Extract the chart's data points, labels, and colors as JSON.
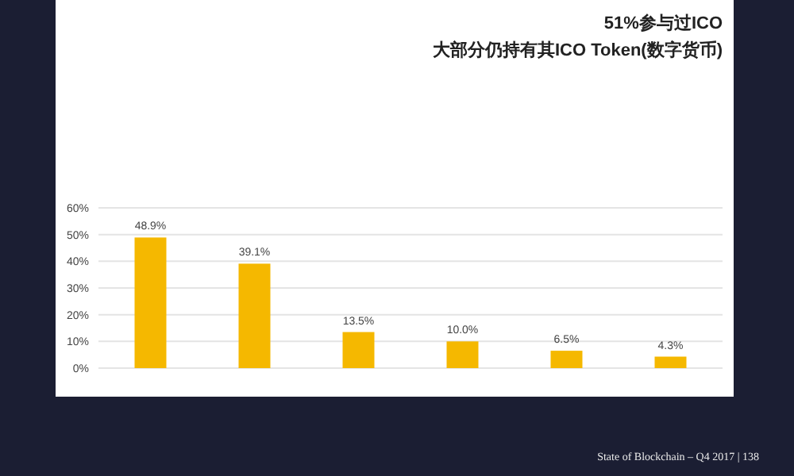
{
  "chart_data": {
    "type": "bar",
    "title": "51%参与过ICO",
    "subtitle": "大部分仍持有其ICO Token(数字货币)",
    "categories": [
      null,
      null,
      null,
      null,
      null,
      null
    ],
    "values": [
      48.9,
      39.1,
      13.5,
      10.0,
      6.5,
      4.3
    ],
    "value_labels": [
      "48.9%",
      "39.1%",
      "13.5%",
      "10.0%",
      "6.5%",
      "4.3%"
    ],
    "color": "#f5b800",
    "ylim": [
      0,
      60
    ],
    "yticks": [
      {
        "value": 0,
        "label": "0%"
      },
      {
        "value": 10,
        "label": "10%"
      },
      {
        "value": 20,
        "label": "20%"
      },
      {
        "value": 30,
        "label": "30%"
      },
      {
        "value": 40,
        "label": "40%"
      },
      {
        "value": 50,
        "label": "50%"
      },
      {
        "value": 60,
        "label": "60%"
      }
    ],
    "grid": "y",
    "annotations": [
      "State of Blockchain – Q4 2017 | 138"
    ]
  }
}
